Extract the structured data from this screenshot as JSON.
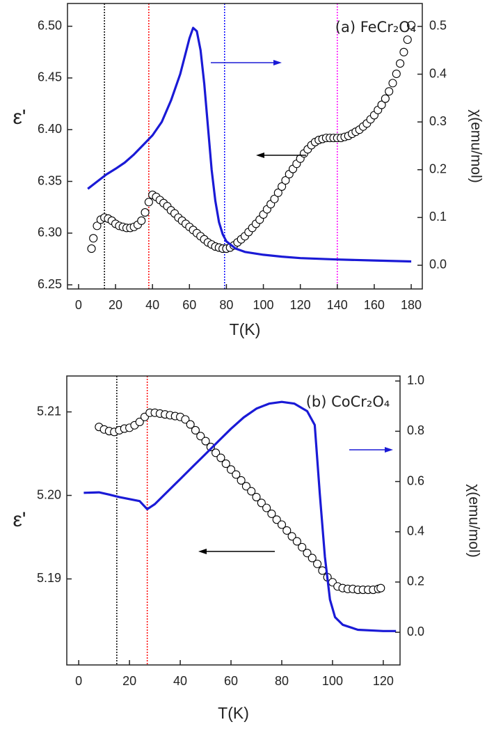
{
  "chart_data": [
    {
      "type": "scatter",
      "title": "(a) FeCr₂O₄",
      "xlabel": "T(K)",
      "ylabel": "ε'",
      "y2label": "χ(emu/mol)",
      "xlim": [
        -6,
        186
      ],
      "ylim": [
        6.246,
        6.522
      ],
      "y2lim": [
        -0.0496,
        0.548
      ],
      "xticks": [
        0,
        20,
        40,
        60,
        80,
        100,
        120,
        140,
        160,
        180
      ],
      "yticks": [
        6.25,
        {
          "value": 6.3,
          "label": "6.30"
        },
        6.35,
        {
          "value": 6.4,
          "label": "6.40"
        },
        6.45,
        {
          "value": 6.5,
          "label": "6.50"
        }
      ],
      "y2ticks": [
        {
          "value": 0,
          "label": "0.0"
        },
        0.1,
        0.2,
        0.3,
        0.4,
        0.5
      ],
      "grid": false,
      "vlines": [
        {
          "x": 14,
          "color": "#000000"
        },
        {
          "x": 38,
          "color": "#ff0000"
        },
        {
          "x": 79,
          "color": "#0000ff"
        },
        {
          "x": 140,
          "color": "#ff00ff"
        }
      ],
      "series": [
        {
          "type": "scatter",
          "color": "#000000",
          "x": [
            7,
            8,
            10,
            12,
            14,
            16,
            18,
            20,
            22,
            24,
            26,
            28,
            30,
            32,
            34,
            36,
            38,
            40,
            42,
            44,
            46,
            48,
            50,
            52,
            54,
            56,
            58,
            60,
            62,
            64,
            66,
            68,
            70,
            72,
            74,
            76,
            78,
            80,
            82,
            84,
            86,
            88,
            90,
            92,
            94,
            96,
            98,
            100,
            102,
            104,
            106,
            108,
            110,
            112,
            114,
            116,
            118,
            120,
            122,
            124,
            126,
            128,
            130,
            132,
            134,
            136,
            138,
            140,
            142,
            144,
            146,
            148,
            150,
            152,
            154,
            156,
            158,
            160,
            162,
            164,
            166,
            168,
            170,
            172,
            174,
            176,
            178,
            180
          ],
          "values": [
            6.285,
            6.295,
            6.307,
            6.313,
            6.315,
            6.314,
            6.312,
            6.309,
            6.307,
            6.306,
            6.305,
            6.305,
            6.306,
            6.308,
            6.312,
            6.32,
            6.33,
            6.337,
            6.335,
            6.332,
            6.329,
            6.326,
            6.322,
            6.319,
            6.315,
            6.312,
            6.309,
            6.306,
            6.303,
            6.3,
            6.297,
            6.294,
            6.291,
            6.289,
            6.287,
            6.286,
            6.285,
            6.285,
            6.286,
            6.288,
            6.291,
            6.294,
            6.297,
            6.301,
            6.305,
            6.309,
            6.313,
            6.318,
            6.323,
            6.328,
            6.333,
            6.339,
            6.345,
            6.351,
            6.357,
            6.362,
            6.367,
            6.372,
            6.377,
            6.381,
            6.385,
            6.388,
            6.39,
            6.391,
            6.392,
            6.392,
            6.392,
            6.392,
            6.392,
            6.393,
            6.394,
            6.396,
            6.398,
            6.4,
            6.403,
            6.406,
            6.41,
            6.414,
            6.419,
            6.424,
            6.43,
            6.437,
            6.445,
            6.454,
            6.464,
            6.475,
            6.487,
            6.501
          ]
        },
        {
          "type": "line",
          "axis": "y2",
          "color": "#1a1ad6",
          "x": [
            5,
            10,
            15,
            20,
            25,
            30,
            35,
            38,
            40,
            45,
            50,
            55,
            58,
            60,
            62,
            64,
            66,
            68,
            70,
            72,
            74,
            76,
            78,
            80,
            85,
            90,
            100,
            110,
            120,
            140,
            160,
            180
          ],
          "values": [
            0.16,
            0.175,
            0.19,
            0.202,
            0.215,
            0.232,
            0.252,
            0.264,
            0.272,
            0.3,
            0.345,
            0.4,
            0.445,
            0.475,
            0.497,
            0.49,
            0.45,
            0.38,
            0.29,
            0.2,
            0.135,
            0.09,
            0.065,
            0.05,
            0.035,
            0.028,
            0.022,
            0.018,
            0.015,
            0.012,
            0.01,
            0.008
          ]
        }
      ]
    },
    {
      "type": "scatter",
      "title": "(b) CoCr₂O₄",
      "xlabel": "T(K)",
      "ylabel": "ε'",
      "y2label": "χ(emu/mol)",
      "xlim": [
        -4.7,
        126.6
      ],
      "ylim": [
        5.1797,
        5.2143
      ],
      "y2lim": [
        -0.13,
        1.02
      ],
      "xticks": [
        0,
        20,
        40,
        60,
        80,
        100,
        120
      ],
      "yticks": [
        5.19,
        {
          "value": 5.2,
          "label": "5.20"
        },
        5.21
      ],
      "y2ticks": [
        {
          "value": 0,
          "label": "0.0"
        },
        0.2,
        0.4,
        0.6,
        0.8,
        {
          "value": 1,
          "label": "1.0"
        }
      ],
      "grid": false,
      "vlines": [
        {
          "x": 15,
          "color": "#000000"
        },
        {
          "x": 27,
          "color": "#ff0000"
        }
      ],
      "series": [
        {
          "type": "scatter",
          "color": "#000000",
          "x": [
            8,
            10,
            12,
            14,
            16,
            18,
            20,
            22,
            24,
            26,
            28,
            30,
            32,
            34,
            36,
            38,
            40,
            42,
            44,
            46,
            48,
            50,
            52,
            54,
            56,
            58,
            60,
            62,
            64,
            66,
            68,
            70,
            72,
            74,
            76,
            78,
            80,
            82,
            84,
            86,
            88,
            90,
            92,
            94,
            96,
            98,
            100,
            102,
            104,
            106,
            108,
            110,
            112,
            114,
            116,
            118,
            119
          ],
          "values": [
            5.2082,
            5.2079,
            5.2077,
            5.2076,
            5.2078,
            5.208,
            5.2081,
            5.2084,
            5.2088,
            5.2094,
            5.2099,
            5.2099,
            5.2098,
            5.2097,
            5.2096,
            5.2095,
            5.2094,
            5.2091,
            5.2085,
            5.2078,
            5.2071,
            5.2065,
            5.2058,
            5.2051,
            5.2045,
            5.2038,
            5.2031,
            5.2025,
            5.2018,
            5.2011,
            5.2005,
            5.1998,
            5.1991,
            5.1985,
            5.1978,
            5.1971,
            5.1965,
            5.1958,
            5.1951,
            5.1945,
            5.1938,
            5.1931,
            5.1925,
            5.1918,
            5.191,
            5.1902,
            5.1896,
            5.1891,
            5.1889,
            5.1888,
            5.1888,
            5.1887,
            5.1887,
            5.1887,
            5.1887,
            5.1888,
            5.1889
          ]
        },
        {
          "type": "line",
          "axis": "y2",
          "color": "#1a1ad6",
          "x": [
            2,
            8,
            12,
            16,
            20,
            24,
            27,
            30,
            35,
            40,
            45,
            50,
            55,
            60,
            65,
            70,
            75,
            80,
            85,
            90,
            93,
            95,
            97,
            99,
            101,
            104,
            110,
            120,
            125
          ],
          "values": [
            0.555,
            0.557,
            0.548,
            0.538,
            0.53,
            0.522,
            0.49,
            0.51,
            0.56,
            0.61,
            0.66,
            0.71,
            0.76,
            0.81,
            0.855,
            0.89,
            0.91,
            0.917,
            0.91,
            0.88,
            0.825,
            0.55,
            0.3,
            0.13,
            0.06,
            0.03,
            0.01,
            0.005,
            0.005
          ]
        }
      ]
    }
  ]
}
